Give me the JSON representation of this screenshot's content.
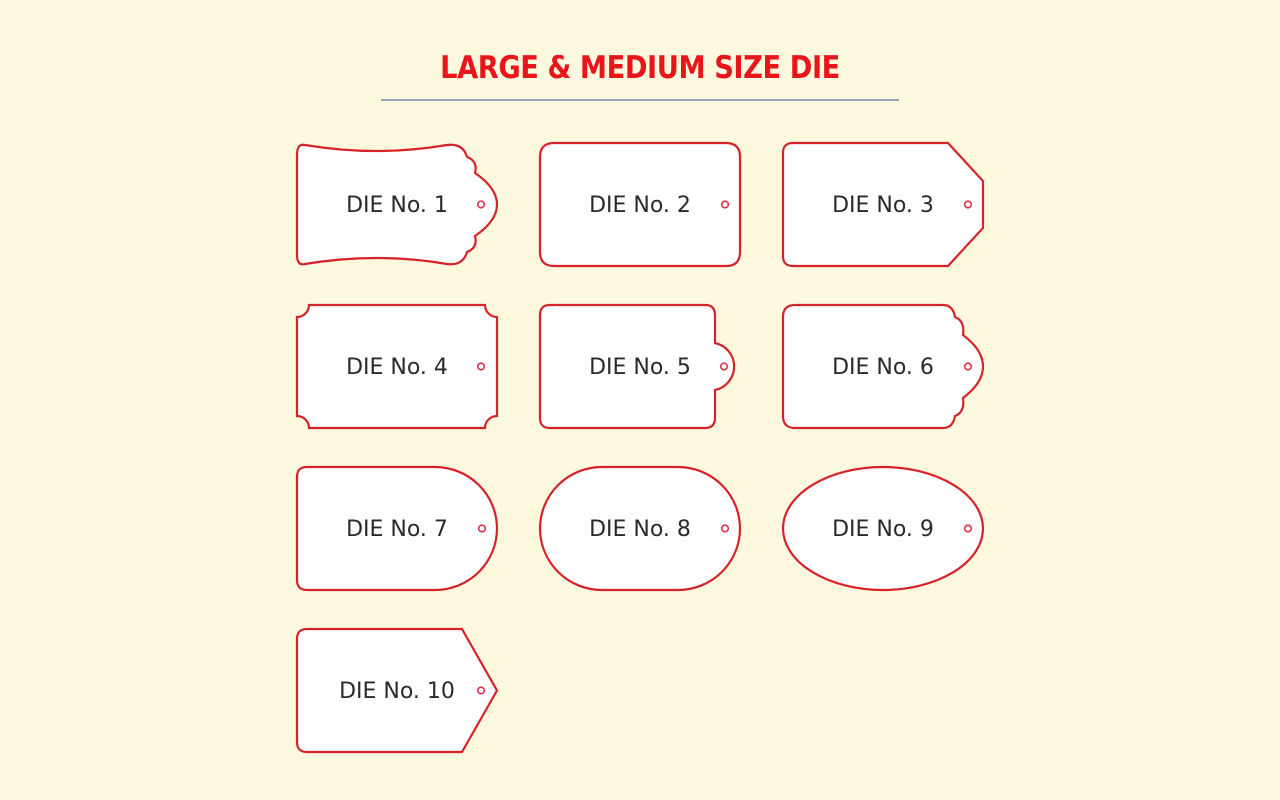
{
  "title": "LARGE & MEDIUM SIZE DIE",
  "colors": {
    "title": "#e8151b",
    "outline": "#d6232a",
    "background": "#fdf9df"
  },
  "dies": [
    {
      "label": "DIE No. 1",
      "shape": "curved-top-bottom-scalloped-end"
    },
    {
      "label": "DIE No. 2",
      "shape": "rounded-rectangle"
    },
    {
      "label": "DIE No. 3",
      "shape": "clipped-corners-tag"
    },
    {
      "label": "DIE No. 4",
      "shape": "notched-corners"
    },
    {
      "label": "DIE No. 5",
      "shape": "rectangle-with-round-tab"
    },
    {
      "label": "DIE No. 6",
      "shape": "scalloped-end"
    },
    {
      "label": "DIE No. 7",
      "shape": "half-round-end"
    },
    {
      "label": "DIE No. 8",
      "shape": "stadium"
    },
    {
      "label": "DIE No. 9",
      "shape": "ellipse"
    },
    {
      "label": "DIE No. 10",
      "shape": "pointed-tag"
    }
  ]
}
